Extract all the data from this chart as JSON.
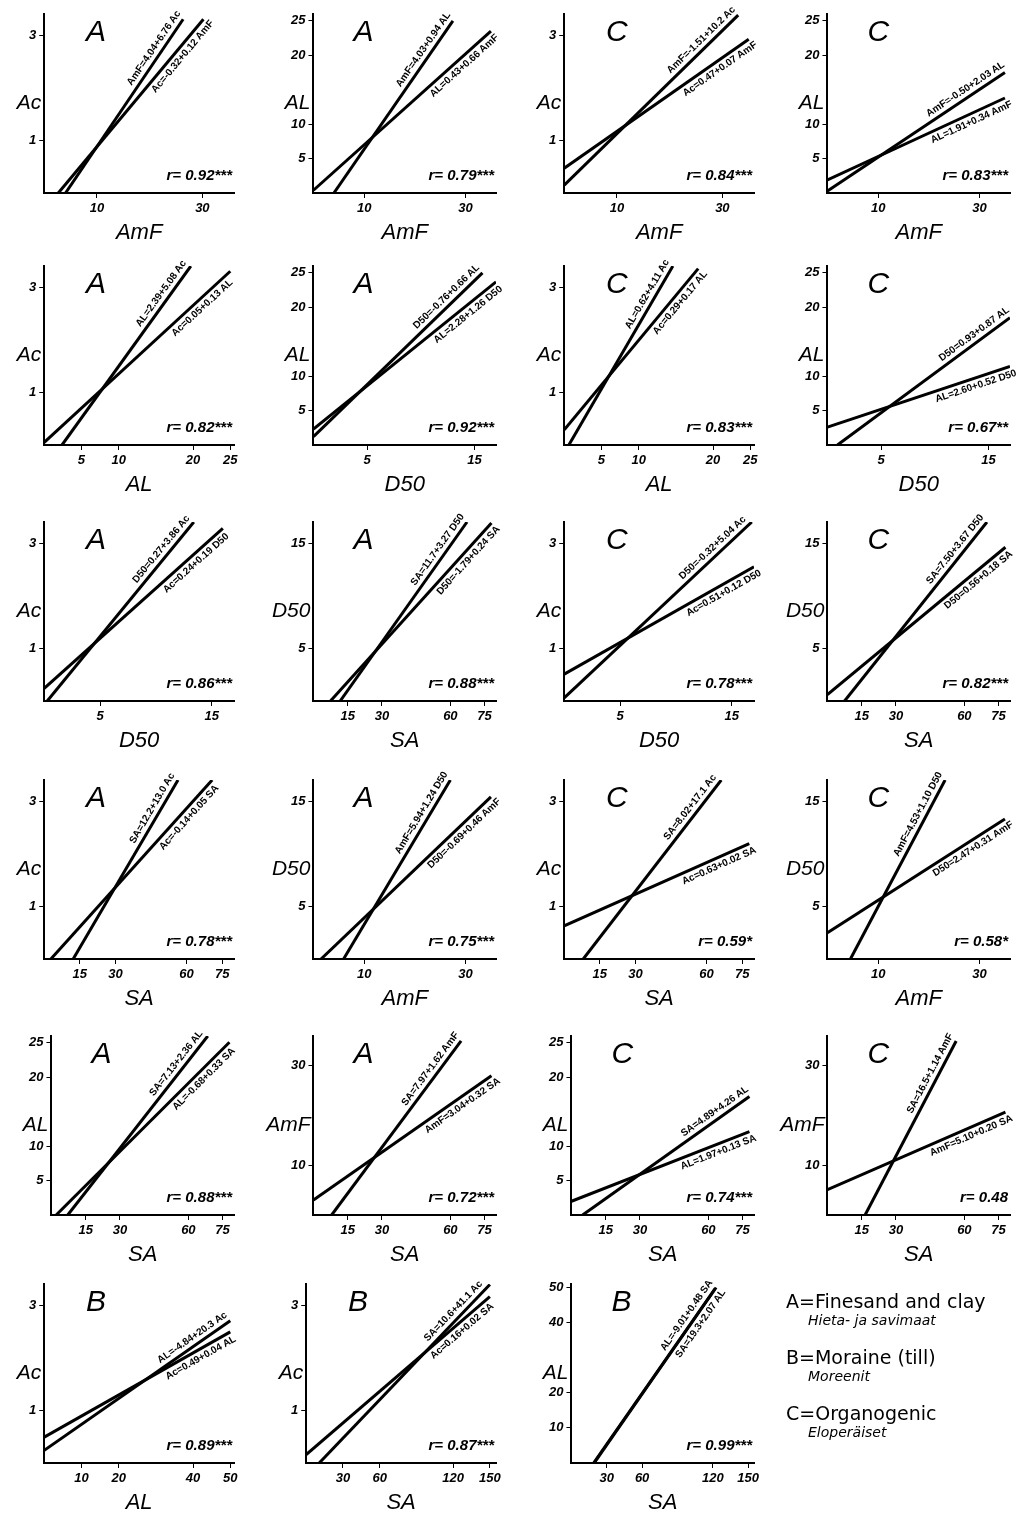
{
  "chart_data": [
    {
      "type": "line",
      "title": "A",
      "xlabel": "AmF",
      "ylabel": "Ac",
      "xlim": [
        0,
        36
      ],
      "xticks": [
        10,
        30
      ],
      "ylim": [
        0,
        3.4
      ],
      "yticks": [
        1,
        3
      ],
      "annotations": [
        "r= 0.92***"
      ],
      "series": [
        {
          "name": "AmF=4.04+6.76 Ac",
          "color": "#000000",
          "x": [
            4.04,
            26.35
          ],
          "values": [
            0,
            3.3
          ]
        },
        {
          "name": "Ac=-0.32+0.12 AmF",
          "color": "#000000",
          "x": [
            2.67,
            30.2
          ],
          "values": [
            0,
            3.3
          ]
        }
      ]
    },
    {
      "type": "line",
      "title": "A",
      "xlabel": "AmF",
      "ylabel": "AL",
      "xlim": [
        0,
        36
      ],
      "xticks": [
        10,
        30
      ],
      "ylim": [
        0,
        26
      ],
      "yticks": [
        5,
        10,
        20,
        25
      ],
      "annotations": [
        "r= 0.79***"
      ],
      "series": [
        {
          "name": "AmF=4.03+0.94 AL",
          "color": "#000000",
          "x": [
            4.03,
            27.5
          ],
          "values": [
            0,
            25
          ]
        },
        {
          "name": "AL=0.43+0.66 AmF",
          "color": "#000000",
          "x": [
            0,
            35
          ],
          "values": [
            0.4,
            23.5
          ]
        }
      ]
    },
    {
      "type": "line",
      "title": "C",
      "xlabel": "AmF",
      "ylabel": "Ac",
      "xlim": [
        0,
        36
      ],
      "xticks": [
        10,
        30
      ],
      "ylim": [
        0,
        3.4
      ],
      "yticks": [
        1,
        3
      ],
      "annotations": [
        "r= 0.84***"
      ],
      "series": [
        {
          "name": "AmF=-1.51+10.2 Ac",
          "color": "#000000",
          "x": [
            0,
            33
          ],
          "values": [
            0.15,
            3.38
          ]
        },
        {
          "name": "Ac=0.47+0.07 AmF",
          "color": "#000000",
          "x": [
            0,
            35
          ],
          "values": [
            0.47,
            2.92
          ]
        }
      ]
    },
    {
      "type": "line",
      "title": "C",
      "xlabel": "AmF",
      "ylabel": "AL",
      "xlim": [
        0,
        36
      ],
      "xticks": [
        10,
        30
      ],
      "ylim": [
        0,
        26
      ],
      "yticks": [
        5,
        10,
        20,
        25
      ],
      "annotations": [
        "r= 0.83***"
      ],
      "series": [
        {
          "name": "AmF=-0.50+2.03 AL",
          "color": "#000000",
          "x": [
            0,
            35
          ],
          "values": [
            0.3,
            17.5
          ]
        },
        {
          "name": "AL=1.91+0.34 AmF",
          "color": "#000000",
          "x": [
            0,
            35
          ],
          "values": [
            1.9,
            13.8
          ]
        }
      ]
    },
    {
      "type": "line",
      "title": "A",
      "xlabel": "AL",
      "ylabel": "Ac",
      "xlim": [
        0,
        25.5
      ],
      "xticks": [
        5,
        10,
        20,
        25
      ],
      "ylim": [
        0,
        3.4
      ],
      "yticks": [
        1,
        3
      ],
      "annotations": [
        "r= 0.82***"
      ],
      "series": [
        {
          "name": "AL=2.39+5.08 Ac",
          "color": "#000000",
          "x": [
            2.39,
            19.7
          ],
          "values": [
            0,
            3.4
          ]
        },
        {
          "name": "Ac=0.05+0.13 AL",
          "color": "#000000",
          "x": [
            0,
            25
          ],
          "values": [
            0.05,
            3.3
          ]
        }
      ]
    },
    {
      "type": "line",
      "title": "A",
      "xlabel": "D50",
      "ylabel": "AL",
      "xlim": [
        0,
        17
      ],
      "xticks": [
        5,
        15
      ],
      "ylim": [
        0,
        26
      ],
      "yticks": [
        5,
        10,
        20,
        25
      ],
      "annotations": [
        "r= 0.92***"
      ],
      "series": [
        {
          "name": "D50=-0.76+0.66 AL",
          "color": "#000000",
          "x": [
            0,
            15.74
          ],
          "values": [
            1.2,
            25
          ]
        },
        {
          "name": "AL=2.28+1.26 D50",
          "color": "#000000",
          "x": [
            0,
            17
          ],
          "values": [
            2.3,
            23.7
          ]
        }
      ]
    },
    {
      "type": "line",
      "title": "C",
      "xlabel": "AL",
      "ylabel": "Ac",
      "xlim": [
        0,
        25.5
      ],
      "xticks": [
        5,
        10,
        20,
        25
      ],
      "ylim": [
        0,
        3.4
      ],
      "yticks": [
        1,
        3
      ],
      "annotations": [
        "r= 0.83***"
      ],
      "series": [
        {
          "name": "AL=0.62+4.11 Ac",
          "color": "#000000",
          "x": [
            0.62,
            14.6
          ],
          "values": [
            0,
            3.4
          ]
        },
        {
          "name": "Ac=0.29+0.17 AL",
          "color": "#000000",
          "x": [
            0,
            18
          ],
          "values": [
            0.29,
            3.35
          ]
        }
      ]
    },
    {
      "type": "line",
      "title": "C",
      "xlabel": "D50",
      "ylabel": "AL",
      "xlim": [
        0,
        17
      ],
      "xticks": [
        5,
        15
      ],
      "ylim": [
        0,
        26
      ],
      "yticks": [
        5,
        10,
        20,
        25
      ],
      "annotations": [
        "r= 0.67**"
      ],
      "series": [
        {
          "name": "D50=0.93+0.87 AL",
          "color": "#000000",
          "x": [
            0.93,
            17
          ],
          "values": [
            0,
            18.5
          ]
        },
        {
          "name": "AL=2.60+0.52 D50",
          "color": "#000000",
          "x": [
            0,
            17
          ],
          "values": [
            2.6,
            11.4
          ]
        }
      ]
    },
    {
      "type": "line",
      "title": "A",
      "xlabel": "D50",
      "ylabel": "Ac",
      "xlim": [
        0,
        17
      ],
      "xticks": [
        5,
        15
      ],
      "ylim": [
        0,
        3.4
      ],
      "yticks": [
        1,
        3
      ],
      "annotations": [
        "r= 0.86***"
      ],
      "series": [
        {
          "name": "D50=0.27+3.86 Ac",
          "color": "#000000",
          "x": [
            0.27,
            13.4
          ],
          "values": [
            0,
            3.4
          ]
        },
        {
          "name": "Ac=0.24+0.19 D50",
          "color": "#000000",
          "x": [
            0,
            16
          ],
          "values": [
            0.24,
            3.28
          ]
        }
      ]
    },
    {
      "type": "line",
      "title": "A",
      "xlabel": "SA",
      "ylabel": "D50",
      "xlim": [
        0,
        80
      ],
      "xticks": [
        15,
        30,
        60,
        75
      ],
      "ylim": [
        0,
        17
      ],
      "yticks": [
        5,
        15
      ],
      "annotations": [
        "r= 0.88***"
      ],
      "series": [
        {
          "name": "SA=11.7+3.27 D50",
          "color": "#000000",
          "x": [
            11.7,
            67.3
          ],
          "values": [
            0,
            17
          ]
        },
        {
          "name": "D50=-1.79+0.24 SA",
          "color": "#000000",
          "x": [
            7.46,
            78
          ],
          "values": [
            0,
            16.9
          ]
        }
      ]
    },
    {
      "type": "line",
      "title": "C",
      "xlabel": "D50",
      "ylabel": "Ac",
      "xlim": [
        0,
        17
      ],
      "xticks": [
        5,
        15
      ],
      "ylim": [
        0,
        3.4
      ],
      "yticks": [
        1,
        3
      ],
      "annotations": [
        "r= 0.78***"
      ],
      "series": [
        {
          "name": "D50=-0.32+5.04 Ac",
          "color": "#000000",
          "x": [
            0,
            16.8
          ],
          "values": [
            0.06,
            3.4
          ]
        },
        {
          "name": "Ac=0.51+0.12 D50",
          "color": "#000000",
          "x": [
            0,
            17
          ],
          "values": [
            0.51,
            2.55
          ]
        }
      ]
    },
    {
      "type": "line",
      "title": "C",
      "xlabel": "SA",
      "ylabel": "D50",
      "xlim": [
        0,
        80
      ],
      "xticks": [
        15,
        30,
        60,
        75
      ],
      "ylim": [
        0,
        17
      ],
      "yticks": [
        5,
        15
      ],
      "annotations": [
        "r= 0.82***"
      ],
      "series": [
        {
          "name": "SA=7.50+3.67 D50",
          "color": "#000000",
          "x": [
            7.5,
            69.9
          ],
          "values": [
            0,
            17
          ]
        },
        {
          "name": "D50=0.56+0.18 SA",
          "color": "#000000",
          "x": [
            0,
            78
          ],
          "values": [
            0.6,
            14.6
          ]
        }
      ]
    },
    {
      "type": "line",
      "title": "A",
      "xlabel": "SA",
      "ylabel": "Ac",
      "xlim": [
        0,
        80
      ],
      "xticks": [
        15,
        30,
        60,
        75
      ],
      "ylim": [
        0,
        3.4
      ],
      "yticks": [
        1,
        3
      ],
      "annotations": [
        "r= 0.78***"
      ],
      "series": [
        {
          "name": "SA=12.2+13.0 Ac",
          "color": "#000000",
          "x": [
            12.2,
            56.4
          ],
          "values": [
            0,
            3.4
          ]
        },
        {
          "name": "Ac=-0.14+0.05 SA",
          "color": "#000000",
          "x": [
            2.8,
            70.8
          ],
          "values": [
            0,
            3.4
          ]
        }
      ]
    },
    {
      "type": "line",
      "title": "A",
      "xlabel": "AmF",
      "ylabel": "D50",
      "xlim": [
        0,
        36
      ],
      "xticks": [
        10,
        30
      ],
      "ylim": [
        0,
        17
      ],
      "yticks": [
        5,
        15
      ],
      "annotations": [
        "r= 0.75***"
      ],
      "series": [
        {
          "name": "AmF=5.94+1.24 D50",
          "color": "#000000",
          "x": [
            5.94,
            27
          ],
          "values": [
            0,
            17
          ]
        },
        {
          "name": "D50=-0.69+0.46 AmF",
          "color": "#000000",
          "x": [
            1.5,
            35
          ],
          "values": [
            0,
            15.4
          ]
        }
      ]
    },
    {
      "type": "line",
      "title": "C",
      "xlabel": "SA",
      "ylabel": "Ac",
      "xlim": [
        0,
        80
      ],
      "xticks": [
        15,
        30,
        60,
        75
      ],
      "ylim": [
        0,
        3.4
      ],
      "yticks": [
        1,
        3
      ],
      "annotations": [
        "r= 0.59*"
      ],
      "series": [
        {
          "name": "SA=8.02+17.1 Ac",
          "color": "#000000",
          "x": [
            8.02,
            66.2
          ],
          "values": [
            0,
            3.4
          ]
        },
        {
          "name": "Ac=0.63+0.02 SA",
          "color": "#000000",
          "x": [
            0,
            78
          ],
          "values": [
            0.63,
            2.19
          ]
        }
      ]
    },
    {
      "type": "line",
      "title": "C",
      "xlabel": "AmF",
      "ylabel": "D50",
      "xlim": [
        0,
        36
      ],
      "xticks": [
        10,
        30
      ],
      "ylim": [
        0,
        17
      ],
      "yticks": [
        5,
        15
      ],
      "annotations": [
        "r= 0.58*"
      ],
      "series": [
        {
          "name": "AmF=4.53+1.10 D50",
          "color": "#000000",
          "x": [
            4.53,
            23.2
          ],
          "values": [
            0,
            17
          ]
        },
        {
          "name": "D50=2.47+0.31 AmF",
          "color": "#000000",
          "x": [
            0,
            35
          ],
          "values": [
            2.5,
            13.3
          ]
        }
      ]
    },
    {
      "type": "line",
      "title": "A",
      "xlabel": "SA",
      "ylabel": "AL",
      "xlim": [
        0,
        80
      ],
      "xticks": [
        15,
        30,
        60,
        75
      ],
      "ylim": [
        0,
        26
      ],
      "yticks": [
        5,
        10,
        20,
        25
      ],
      "annotations": [
        "r= 0.88***"
      ],
      "series": [
        {
          "name": "SA=7.13+2.36 AL",
          "color": "#000000",
          "x": [
            7.13,
            68.5
          ],
          "values": [
            0,
            26
          ]
        },
        {
          "name": "AL=-0.68+0.33 SA",
          "color": "#000000",
          "x": [
            2.06,
            78
          ],
          "values": [
            0,
            25.1
          ]
        }
      ]
    },
    {
      "type": "line",
      "title": "A",
      "xlabel": "SA",
      "ylabel": "AmF",
      "xlim": [
        0,
        80
      ],
      "xticks": [
        15,
        30,
        60,
        75
      ],
      "ylim": [
        0,
        36
      ],
      "yticks": [
        10,
        30
      ],
      "annotations": [
        "r= 0.72***"
      ],
      "series": [
        {
          "name": "SA=7.97+1.62 AmF",
          "color": "#000000",
          "x": [
            7.97,
            64.7
          ],
          "values": [
            0,
            35
          ]
        },
        {
          "name": "AmF=3.04+0.32 SA",
          "color": "#000000",
          "x": [
            0,
            78
          ],
          "values": [
            3,
            28
          ]
        }
      ]
    },
    {
      "type": "line",
      "title": "C",
      "xlabel": "SA",
      "ylabel": "AL",
      "xlim": [
        0,
        80
      ],
      "xticks": [
        15,
        30,
        60,
        75
      ],
      "ylim": [
        0,
        26
      ],
      "yticks": [
        5,
        10,
        20,
        25
      ],
      "annotations": [
        "r= 0.74***"
      ],
      "series": [
        {
          "name": "SA=4.89+4.26 AL",
          "color": "#000000",
          "x": [
            4.89,
            78
          ],
          "values": [
            0,
            17.2
          ]
        },
        {
          "name": "AL=1.97+0.13 SA",
          "color": "#000000",
          "x": [
            0,
            78
          ],
          "values": [
            2,
            12.1
          ]
        }
      ]
    },
    {
      "type": "line",
      "title": "C",
      "xlabel": "SA",
      "ylabel": "AmF",
      "xlim": [
        0,
        80
      ],
      "xticks": [
        15,
        30,
        60,
        75
      ],
      "ylim": [
        0,
        36
      ],
      "yticks": [
        10,
        30
      ],
      "annotations": [
        "r= 0.48"
      ],
      "series": [
        {
          "name": "SA=16.5+1.14 AmF",
          "color": "#000000",
          "x": [
            16.5,
            56.4
          ],
          "values": [
            0,
            35
          ]
        },
        {
          "name": "AmF=5.10+0.20 SA",
          "color": "#000000",
          "x": [
            0,
            78
          ],
          "values": [
            5.1,
            20.7
          ]
        }
      ]
    },
    {
      "type": "line",
      "title": "B",
      "xlabel": "AL",
      "ylabel": "Ac",
      "xlim": [
        0,
        51
      ],
      "xticks": [
        10,
        20,
        40,
        50
      ],
      "ylim": [
        0,
        3.4
      ],
      "yticks": [
        1,
        3
      ],
      "annotations": [
        "r= 0.89***"
      ],
      "series": [
        {
          "name": "AL=-4.84+20.3 Ac",
          "color": "#000000",
          "x": [
            0,
            50
          ],
          "values": [
            0.24,
            2.7
          ]
        },
        {
          "name": "Ac=0.49+0.04 AL",
          "color": "#000000",
          "x": [
            0,
            50
          ],
          "values": [
            0.49,
            2.49
          ]
        }
      ]
    },
    {
      "type": "line",
      "title": "B",
      "xlabel": "SA",
      "ylabel": "Ac",
      "xlim": [
        0,
        155
      ],
      "xticks": [
        30,
        60,
        120,
        150
      ],
      "ylim": [
        0,
        3.4
      ],
      "yticks": [
        1,
        3
      ],
      "annotations": [
        "r= 0.87***"
      ],
      "series": [
        {
          "name": "SA=10.6+41.1 Ac",
          "color": "#000000",
          "x": [
            10.6,
            150
          ],
          "values": [
            0,
            3.39
          ]
        },
        {
          "name": "Ac=0.16+0.02 SA",
          "color": "#000000",
          "x": [
            0,
            150
          ],
          "values": [
            0.16,
            3.16
          ]
        }
      ]
    },
    {
      "type": "line",
      "title": "B",
      "xlabel": "SA",
      "ylabel": "AL",
      "xlim": [
        0,
        155
      ],
      "xticks": [
        30,
        60,
        120,
        150
      ],
      "ylim": [
        0,
        51
      ],
      "yticks": [
        10,
        20,
        40,
        50
      ],
      "annotations": [
        "r= 0.99***"
      ],
      "series": [
        {
          "name": "SA=19.3+2.07 AL",
          "color": "#000000",
          "x": [
            19.3,
            122.8
          ],
          "values": [
            0,
            50
          ]
        },
        {
          "name": "AL=-9.01+0.48 SA",
          "color": "#000000",
          "x": [
            18.8,
            122
          ],
          "values": [
            0,
            49.7
          ]
        }
      ]
    },
    {
      "type": "other",
      "annotations": [
        "A=Finesand and clay",
        "Hieta- ja savimaat",
        "B=Moraine (till)",
        "Moreenit",
        "C=Organogenic",
        "Eloperäiset"
      ]
    }
  ]
}
